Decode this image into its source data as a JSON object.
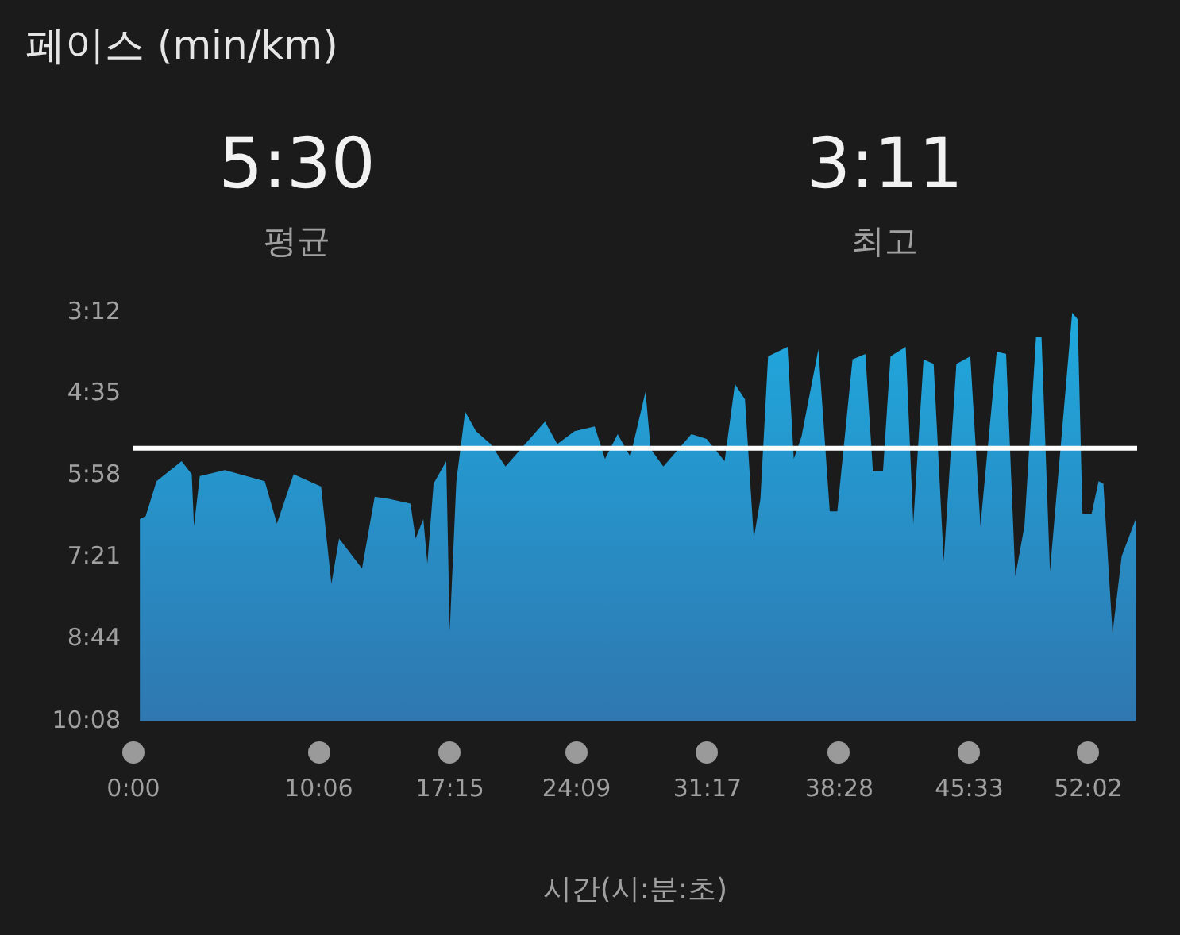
{
  "chart_data": {
    "type": "area",
    "title": "페이스 (min/km)",
    "xlabel": "시간(시:분:초)",
    "annotations": [
      "5:30",
      "평균",
      "3:11",
      "최고"
    ],
    "series": [
      {
        "color": "#1fa9de",
        "x": [
          0.35,
          0.35,
          0.67,
          1.26,
          2.63,
          3.18,
          3.3,
          3.62,
          4.99,
          7.16,
          7.82,
          8.73,
          10.23,
          10.79,
          11.21,
          12.46,
          13.15,
          13.99,
          15.1,
          15.38,
          15.8,
          16.02,
          16.36,
          17.05,
          17.24,
          17.6,
          18.08,
          18.67,
          19.47,
          20.28,
          21.35,
          22.43,
          23.1,
          24.04,
          25.14,
          25.7,
          26.39,
          27.08,
          27.91,
          28.19,
          28.88,
          30.41,
          31.24,
          32.22,
          32.78,
          33.33,
          33.81,
          34.17,
          34.59,
          35.65,
          35.99,
          36.41,
          37.33,
          37.95,
          38.36,
          39.19,
          39.89,
          40.3,
          40.85,
          41.26,
          42.09,
          42.5,
          43.06,
          43.61,
          44.16,
          44.85,
          45.61,
          46.16,
          47.05,
          47.56,
          48.06,
          48.56,
          49.19,
          49.49,
          49.95,
          51.16,
          51.46,
          51.72,
          52.22,
          52.6,
          52.86,
          53.36,
          53.86,
          54.62,
          54.62
        ],
        "values": [
          10.133,
          6.7,
          6.65,
          6.06,
          5.72,
          5.94,
          6.82,
          5.97,
          5.87,
          6.06,
          6.78,
          5.94,
          6.15,
          7.8,
          7.03,
          7.54,
          6.32,
          6.36,
          6.44,
          7.03,
          6.7,
          7.46,
          6.1,
          5.72,
          8.6,
          6.06,
          4.88,
          5.21,
          5.43,
          5.81,
          5.43,
          5.05,
          5.43,
          5.21,
          5.13,
          5.68,
          5.26,
          5.64,
          4.54,
          5.51,
          5.81,
          5.26,
          5.34,
          5.72,
          4.41,
          4.67,
          7.03,
          6.36,
          3.94,
          3.78,
          5.68,
          5.3,
          3.82,
          6.57,
          6.57,
          3.99,
          3.9,
          5.89,
          5.89,
          3.94,
          3.78,
          6.78,
          3.99,
          4.07,
          7.42,
          4.07,
          3.94,
          6.82,
          3.86,
          3.9,
          7.67,
          6.82,
          3.61,
          3.61,
          7.59,
          3.2,
          3.31,
          6.61,
          6.61,
          6.06,
          6.1,
          8.64,
          7.33,
          6.7,
          10.133
        ]
      }
    ],
    "xlim": [
      0,
      54.7
    ],
    "xticks": [
      {
        "value": 0,
        "label": "0:00"
      },
      {
        "value": 10.1,
        "label": "10:06"
      },
      {
        "value": 17.25,
        "label": "17:15"
      },
      {
        "value": 24.15,
        "label": "24:09"
      },
      {
        "value": 31.283,
        "label": "31:17"
      },
      {
        "value": 38.467,
        "label": "38:28"
      },
      {
        "value": 45.55,
        "label": "45:33"
      },
      {
        "value": 52.033,
        "label": "52:02"
      }
    ],
    "ylim": [
      10.133,
      3.2
    ],
    "yticks": [
      {
        "value": 3.2,
        "label": "3:12"
      },
      {
        "value": 4.583,
        "label": "4:35"
      },
      {
        "value": 5.967,
        "label": "5:58"
      },
      {
        "value": 7.35,
        "label": "7:21"
      },
      {
        "value": 8.733,
        "label": "8:44"
      },
      {
        "value": 10.133,
        "label": "10:08"
      }
    ],
    "ref_lines": [
      {
        "axis": "y",
        "value": 5.5,
        "color": "#ffffff"
      }
    ],
    "grid": false,
    "legend": false
  }
}
